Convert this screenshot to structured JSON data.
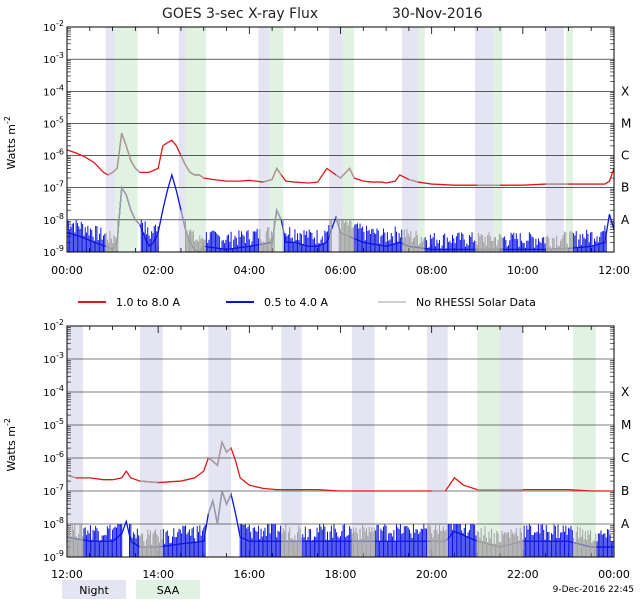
{
  "title": "GOES 3-sec X-ray Flux",
  "date": "30-Nov-2016",
  "timestamp": "9-Dec-2016 22:45",
  "colors": {
    "long_channel": "#e01818",
    "short_channel": "#0a14e0",
    "no_rhessi": "#a0a0a0",
    "night_band": "#e4e4f2",
    "saa_band": "#e2f2e2",
    "grid": "#000000"
  },
  "legend": [
    {
      "label": "1.0 to 8.0 A",
      "color": "#e01818"
    },
    {
      "label": "0.5 to 4.0 A",
      "color": "#0a14e0"
    },
    {
      "label": "No RHESSI Solar Data",
      "color": "#a0a0a0"
    }
  ],
  "bottom_legend": [
    {
      "label": "Night",
      "color": "#e4e4f2"
    },
    {
      "label": "SAA",
      "color": "#e2f2e2"
    }
  ],
  "chart_data": [
    {
      "type": "line",
      "panel": "top",
      "ylabel": "Watts m^-2",
      "y_scale": "log",
      "ylim": [
        1e-09,
        0.01
      ],
      "y_ticks": [
        "10^-9",
        "10^-8",
        "10^-7",
        "10^-6",
        "10^-5",
        "10^-4",
        "10^-3",
        "10^-2"
      ],
      "flare_classes": [
        "A",
        "B",
        "C",
        "M",
        "X"
      ],
      "x_range_hours": [
        0,
        12
      ],
      "x_ticks": [
        "00:00",
        "02:00",
        "04:00",
        "06:00",
        "08:00",
        "10:00",
        "12:00"
      ],
      "night_intervals": [
        [
          0.85,
          1.05
        ],
        [
          2.45,
          2.6
        ],
        [
          4.2,
          4.45
        ],
        [
          5.75,
          6.05
        ],
        [
          7.35,
          7.7
        ],
        [
          8.95,
          9.35
        ],
        [
          10.5,
          10.9
        ]
      ],
      "saa_intervals": [
        [
          1.05,
          1.55
        ],
        [
          2.6,
          3.05
        ],
        [
          4.45,
          4.75
        ],
        [
          6.05,
          6.3
        ],
        [
          7.7,
          7.85
        ],
        [
          9.35,
          9.55
        ],
        [
          10.95,
          11.1
        ]
      ],
      "no_rhessi_intervals": [
        [
          0.85,
          1.6
        ],
        [
          2.45,
          3.05
        ],
        [
          4.2,
          4.75
        ],
        [
          5.75,
          6.3
        ],
        [
          7.35,
          7.85
        ],
        [
          8.95,
          9.55
        ],
        [
          10.5,
          11.1
        ]
      ],
      "series": [
        {
          "name": "1.0 to 8.0 A",
          "x": [
            0,
            0.2,
            0.4,
            0.6,
            0.8,
            0.9,
            1.0,
            1.1,
            1.2,
            1.3,
            1.4,
            1.5,
            1.6,
            1.8,
            2.0,
            2.1,
            2.2,
            2.3,
            2.4,
            2.5,
            2.6,
            2.7,
            2.8,
            2.9,
            3.0,
            3.2,
            3.5,
            3.8,
            4.0,
            4.3,
            4.5,
            4.6,
            4.7,
            4.8,
            5.0,
            5.3,
            5.5,
            5.7,
            5.9,
            6.0,
            6.2,
            6.3,
            6.5,
            6.7,
            6.9,
            7.0,
            7.2,
            7.3,
            7.5,
            7.7,
            8.0,
            8.5,
            9.0,
            9.5,
            10.0,
            10.5,
            11.0,
            11.5,
            11.8,
            11.9,
            12.0
          ],
          "y": [
            1.5e-06,
            1.2e-06,
            9e-07,
            6e-07,
            3e-07,
            2.5e-07,
            3e-07,
            4e-07,
            5e-06,
            2e-06,
            7e-07,
            4e-07,
            3e-07,
            3e-07,
            4e-07,
            2e-06,
            2.5e-06,
            3e-06,
            2e-06,
            1e-06,
            5e-07,
            3e-07,
            2.5e-07,
            2.5e-07,
            2e-07,
            1.8e-07,
            1.6e-07,
            1.6e-07,
            1.7e-07,
            1.5e-07,
            1.8e-07,
            4e-07,
            2.5e-07,
            1.6e-07,
            1.5e-07,
            1.4e-07,
            1.5e-07,
            4e-07,
            2.5e-07,
            2e-07,
            4e-07,
            2e-07,
            1.6e-07,
            1.5e-07,
            1.5e-07,
            1.4e-07,
            1.6e-07,
            2.5e-07,
            1.8e-07,
            1.5e-07,
            1.3e-07,
            1.2e-07,
            1.2e-07,
            1.2e-07,
            1.2e-07,
            1.3e-07,
            1.3e-07,
            1.3e-07,
            1.3e-07,
            1.6e-07,
            4e-07
          ]
        },
        {
          "name": "0.5 to 4.0 A",
          "x": [
            0,
            0.3,
            0.6,
            0.85,
            1.0,
            1.1,
            1.2,
            1.3,
            1.4,
            1.5,
            1.6,
            1.7,
            1.8,
            1.9,
            2.0,
            2.1,
            2.2,
            2.3,
            2.4,
            2.5,
            2.6,
            2.7,
            2.8,
            2.9,
            3.0,
            3.5,
            4.0,
            4.5,
            4.6,
            4.7,
            4.8,
            5.0,
            5.3,
            5.5,
            5.7,
            5.9,
            6.0,
            6.2,
            6.5,
            7.0,
            7.3,
            7.5,
            8.0,
            9.0,
            9.5,
            10.0,
            10.5,
            11.0,
            11.5,
            11.8,
            11.9,
            12.0
          ],
          "y": [
            4e-09,
            3e-09,
            2e-09,
            1.5e-09,
            1.2e-09,
            2e-09,
            1e-07,
            6e-08,
            2e-08,
            1e-08,
            7e-09,
            3e-09,
            1.5e-09,
            2e-09,
            4e-09,
            2e-08,
            8e-08,
            2.5e-07,
            8e-08,
            2e-08,
            5e-09,
            2e-09,
            1.2e-09,
            1e-09,
            1.5e-09,
            1.2e-09,
            1.5e-09,
            2e-09,
            2e-08,
            1e-08,
            2e-09,
            2e-09,
            1.5e-09,
            1.5e-09,
            2e-09,
            1.2e-08,
            4e-09,
            3e-09,
            2e-09,
            1.5e-09,
            2e-09,
            1.5e-09,
            1.2e-09,
            1.2e-09,
            1.2e-09,
            1.2e-09,
            1.2e-09,
            1.3e-09,
            1.5e-09,
            2e-09,
            1.5e-08,
            5e-09
          ]
        }
      ]
    },
    {
      "type": "line",
      "panel": "bottom",
      "ylabel": "Watts m^-2",
      "y_scale": "log",
      "ylim": [
        1e-09,
        0.01
      ],
      "y_ticks": [
        "10^-9",
        "10^-8",
        "10^-7",
        "10^-6",
        "10^-5",
        "10^-4",
        "10^-3",
        "10^-2"
      ],
      "flare_classes": [
        "A",
        "B",
        "C",
        "M",
        "X"
      ],
      "x_range_hours": [
        12,
        24
      ],
      "x_ticks": [
        "12:00",
        "14:00",
        "16:00",
        "18:00",
        "20:00",
        "22:00",
        "00:00"
      ],
      "night_intervals": [
        [
          12.0,
          12.35
        ],
        [
          13.6,
          14.1
        ],
        [
          15.1,
          15.6
        ],
        [
          16.7,
          17.15
        ],
        [
          18.25,
          18.75
        ],
        [
          19.9,
          20.35
        ],
        [
          21.5,
          22.0
        ]
      ],
      "saa_intervals": [
        [
          21.0,
          21.5
        ],
        [
          23.1,
          23.6
        ]
      ],
      "no_rhessi_intervals": [
        [
          12.0,
          12.35
        ],
        [
          13.6,
          14.1
        ],
        [
          15.1,
          15.6
        ],
        [
          16.7,
          17.15
        ],
        [
          18.25,
          18.75
        ],
        [
          19.9,
          20.35
        ],
        [
          21.0,
          22.0
        ],
        [
          23.1,
          23.6
        ]
      ],
      "series": [
        {
          "name": "1.0 to 8.0 A",
          "x": [
            12.0,
            12.2,
            12.5,
            12.8,
            13.0,
            13.2,
            13.3,
            13.4,
            13.6,
            14.0,
            14.5,
            14.8,
            15.0,
            15.1,
            15.2,
            15.3,
            15.4,
            15.5,
            15.6,
            15.7,
            15.8,
            16.0,
            16.3,
            16.6,
            17.0,
            17.5,
            18.0,
            18.5,
            19.0,
            19.5,
            20.0,
            20.3,
            20.5,
            20.7,
            21.0,
            21.5,
            22.0,
            22.5,
            23.0,
            23.5,
            24.0
          ],
          "y": [
            3e-07,
            2.5e-07,
            2.5e-07,
            2.2e-07,
            2.2e-07,
            2.5e-07,
            4e-07,
            2.5e-07,
            2e-07,
            1.8e-07,
            2e-07,
            2.5e-07,
            4e-07,
            1e-06,
            8e-07,
            6e-07,
            3e-06,
            1.5e-06,
            2e-06,
            8e-07,
            2.5e-07,
            1.5e-07,
            1.2e-07,
            1.1e-07,
            1.1e-07,
            1.1e-07,
            1e-07,
            1e-07,
            1e-07,
            1e-07,
            1e-07,
            1e-07,
            2.5e-07,
            1.5e-07,
            1.1e-07,
            1.1e-07,
            1.1e-07,
            1.1e-07,
            1.1e-07,
            1e-07,
            1e-07
          ]
        },
        {
          "name": "0.5 to 4.0 A",
          "x": [
            12.0,
            12.5,
            13.0,
            13.2,
            13.3,
            13.4,
            13.6,
            14.0,
            14.5,
            15.0,
            15.1,
            15.2,
            15.3,
            15.4,
            15.5,
            15.6,
            15.7,
            15.8,
            16.0,
            16.5,
            17.0,
            17.5,
            18.0,
            18.5,
            19.0,
            19.5,
            20.0,
            20.3,
            20.5,
            21.0,
            21.5,
            22.0,
            22.5,
            23.0,
            23.5,
            24.0
          ],
          "y": [
            4e-09,
            3e-09,
            3e-09,
            5e-09,
            1.2e-08,
            3e-09,
            2e-09,
            2e-09,
            2.5e-09,
            3e-09,
            2e-08,
            5e-08,
            1e-08,
            1e-07,
            4e-08,
            8e-08,
            2e-08,
            4e-09,
            3e-09,
            3e-09,
            3e-09,
            3e-09,
            3e-09,
            3e-09,
            3e-09,
            3e-09,
            3e-09,
            3e-09,
            6e-09,
            3e-09,
            2e-09,
            3e-09,
            3e-09,
            3e-09,
            2e-09,
            2e-09
          ]
        }
      ]
    }
  ]
}
